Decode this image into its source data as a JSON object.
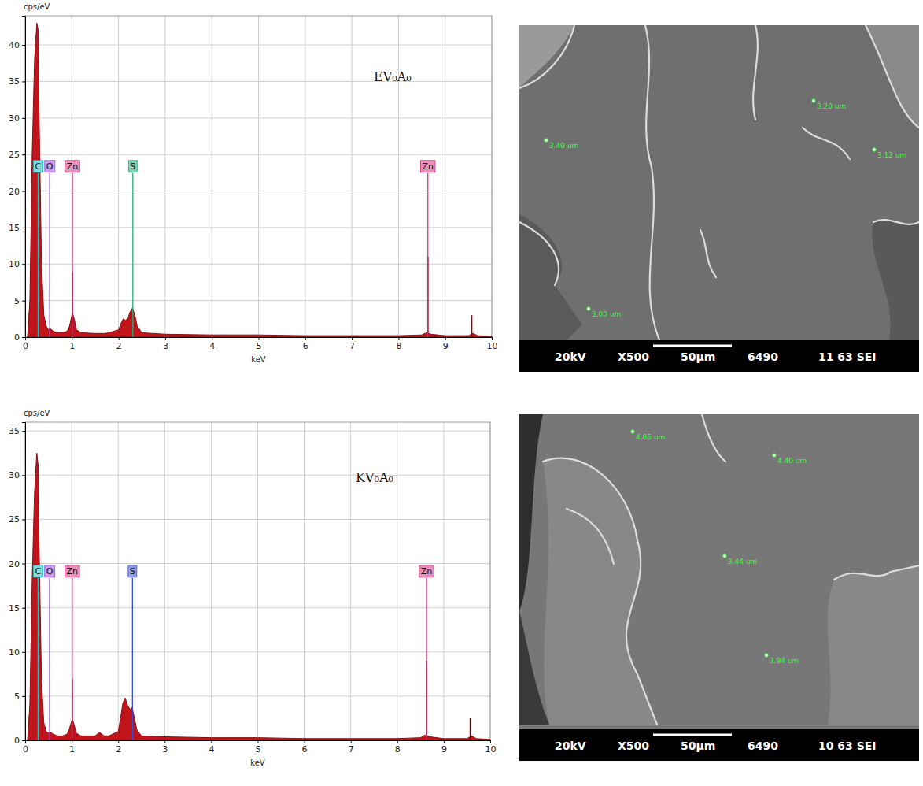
{
  "chart_data": [
    {
      "type": "area",
      "title": "EV₀A₀",
      "x_label": "keV",
      "y_label": "cps/eV",
      "color": "#c0141a",
      "grid": true,
      "xlim": [
        0,
        10
      ],
      "xticks": [
        0,
        1,
        2,
        3,
        4,
        5,
        6,
        7,
        8,
        9,
        10
      ],
      "ylim": [
        0,
        44
      ],
      "yticks": [
        0,
        5,
        10,
        15,
        20,
        25,
        30,
        35,
        40
      ],
      "x": [
        0.05,
        0.1,
        0.15,
        0.2,
        0.25,
        0.28,
        0.3,
        0.35,
        0.4,
        0.45,
        0.5,
        0.53,
        0.6,
        0.7,
        0.8,
        0.9,
        0.95,
        1.0,
        1.02,
        1.05,
        1.1,
        1.2,
        1.5,
        1.6,
        1.7,
        1.8,
        2.0,
        2.05,
        2.1,
        2.15,
        2.2,
        2.25,
        2.3,
        2.35,
        2.4,
        2.5,
        3,
        4,
        5,
        6,
        7,
        8,
        8.5,
        8.6,
        8.7,
        9,
        9.5,
        9.6,
        9.7,
        10
      ],
      "values": [
        0,
        5,
        25,
        38,
        43,
        42,
        30,
        10,
        3,
        1.5,
        1,
        1.2,
        0.8,
        0.6,
        0.6,
        0.8,
        1.5,
        3,
        3.2,
        2.5,
        1,
        0.6,
        0.5,
        0.5,
        0.5,
        0.6,
        1.0,
        1.8,
        2.5,
        2.3,
        2.5,
        3.5,
        4,
        3,
        1.5,
        0.6,
        0.4,
        0.3,
        0.3,
        0.2,
        0.2,
        0.2,
        0.3,
        0.6,
        0.4,
        0.2,
        0.2,
        0.5,
        0.2,
        0.1
      ],
      "stems": {
        "x": [
          1.012,
          8.63,
          9.57
        ],
        "values": [
          9,
          11,
          3
        ],
        "color": "#8b0000"
      },
      "markers": [
        {
          "label": "C",
          "x": 0.277,
          "color": "#20c0c0"
        },
        {
          "label": "O",
          "x": 0.525,
          "color": "#9b4dd6"
        },
        {
          "label": "Zn",
          "x": 1.012,
          "color": "#d0367f"
        },
        {
          "label": "S",
          "x": 2.307,
          "color": "#1fae7a"
        },
        {
          "label": "Zn",
          "x": 8.63,
          "color": "#d0367f"
        }
      ]
    },
    {
      "type": "area",
      "title": "KV₀A₀",
      "x_label": "keV",
      "y_label": "cps/eV",
      "color": "#c0141a",
      "grid": true,
      "xlim": [
        0,
        10
      ],
      "xticks": [
        0,
        1,
        2,
        3,
        4,
        5,
        6,
        7,
        8,
        9,
        10
      ],
      "ylim": [
        0,
        36
      ],
      "yticks": [
        0,
        5,
        10,
        15,
        20,
        25,
        30,
        35
      ],
      "x": [
        0.05,
        0.1,
        0.15,
        0.2,
        0.25,
        0.28,
        0.3,
        0.35,
        0.4,
        0.45,
        0.5,
        0.53,
        0.6,
        0.7,
        0.8,
        0.9,
        0.95,
        1.0,
        1.02,
        1.05,
        1.1,
        1.2,
        1.5,
        1.6,
        1.7,
        1.8,
        2.0,
        2.05,
        2.1,
        2.15,
        2.2,
        2.25,
        2.3,
        2.35,
        2.4,
        2.5,
        3,
        4,
        5,
        6,
        7,
        8,
        8.5,
        8.6,
        8.7,
        9,
        9.5,
        9.6,
        9.7,
        10
      ],
      "values": [
        0,
        4,
        18,
        28,
        32.5,
        31,
        22,
        7,
        2,
        1,
        0.8,
        1,
        0.7,
        0.5,
        0.5,
        0.7,
        1.3,
        2.2,
        2.3,
        1.8,
        0.8,
        0.5,
        0.5,
        0.9,
        0.5,
        0.5,
        1,
        2.5,
        4.2,
        4.8,
        4,
        3.5,
        3.7,
        2.5,
        1.2,
        0.5,
        0.4,
        0.3,
        0.3,
        0.2,
        0.2,
        0.2,
        0.3,
        0.6,
        0.4,
        0.2,
        0.2,
        0.5,
        0.2,
        0.1
      ],
      "stems": {
        "x": [
          1.012,
          8.63,
          9.57
        ],
        "values": [
          7,
          9,
          2.5
        ],
        "color": "#8b0000"
      },
      "markers": [
        {
          "label": "C",
          "x": 0.277,
          "color": "#20c0c0"
        },
        {
          "label": "O",
          "x": 0.525,
          "color": "#9b4dd6"
        },
        {
          "label": "Zn",
          "x": 1.012,
          "color": "#d0367f"
        },
        {
          "label": "S",
          "x": 2.307,
          "color": "#3a4fd0"
        },
        {
          "label": "Zn",
          "x": 8.63,
          "color": "#d0367f"
        }
      ]
    }
  ],
  "micrographs": [
    {
      "info": [
        "20kV",
        "X500",
        "50µm",
        "6490",
        "11 63 SEI"
      ],
      "measurements": [
        "3.40 um",
        "3.20 um",
        "3.12 um",
        "3.00 um"
      ]
    },
    {
      "info": [
        "20kV",
        "X500",
        "50µm",
        "6490",
        "10 63 SEI"
      ],
      "measurements": [
        "4.86 um",
        "4.40 um",
        "3.44 um",
        "3.94 um"
      ]
    }
  ]
}
